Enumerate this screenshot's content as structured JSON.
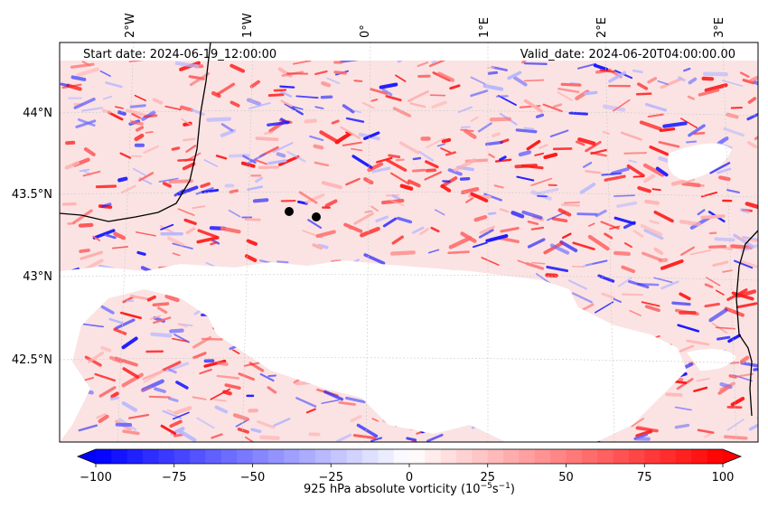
{
  "header": {
    "start_date": "Start date: 2024-06-19_12:00:00",
    "valid_date": "Valid_date: 2024-06-20T04:00:00.00"
  },
  "map": {
    "projection_note": "lat/lon gridlines, rotated projection",
    "lon_ticks": [
      "2°W",
      "1°W",
      "0°",
      "1°E",
      "2°E",
      "3°E"
    ],
    "lat_ticks": [
      "44°N",
      "43.5°N",
      "43°N",
      "42.5°N"
    ],
    "gridlines": true,
    "points": [
      {
        "lon": -0.65,
        "lat": 43.39
      },
      {
        "lon": -0.41,
        "lat": 43.36
      }
    ],
    "missing_region": "terrain-masked area (white) across the lower half",
    "field_colors": {
      "negative": "#0000ff",
      "zero": "#ffffff",
      "positive": "#ff0000"
    }
  },
  "colorbar": {
    "ticks": [
      "−100",
      "−75",
      "−50",
      "−25",
      "0",
      "25",
      "50",
      "75",
      "100"
    ],
    "min": -100,
    "max": 100,
    "label": "925 hPa absolute vorticity (10",
    "label_exp1": "−5",
    "label_mid": "s",
    "label_exp2": "−1",
    "label_end": ")"
  }
}
